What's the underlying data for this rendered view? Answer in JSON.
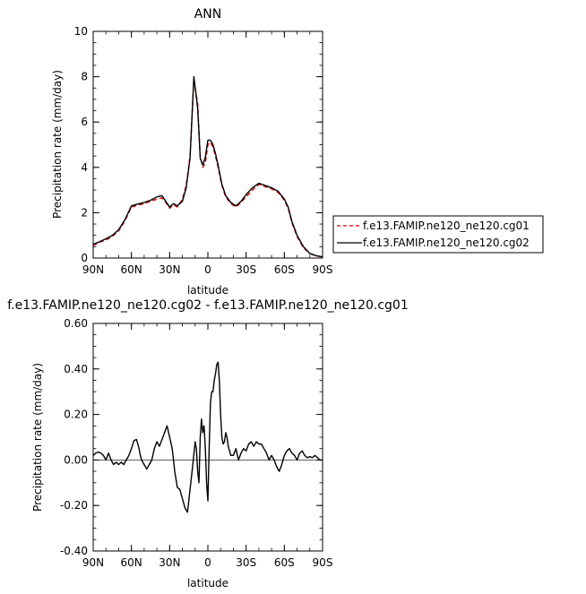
{
  "chart_data": [
    {
      "type": "line",
      "title": "ANN",
      "xlabel": "latitude",
      "ylabel": "Precipitation rate  (mm/day)",
      "xlim": [
        90,
        -90
      ],
      "ylim": [
        0,
        10
      ],
      "x_ticks": [
        90,
        60,
        30,
        0,
        -30,
        -60,
        -90
      ],
      "x_tick_labels": [
        "90N",
        "60N",
        "30N",
        "0",
        "30S",
        "60S",
        "90S"
      ],
      "y_ticks": [
        0,
        2,
        4,
        6,
        8,
        10
      ],
      "y_tick_labels": [
        "0",
        "2",
        "4",
        "6",
        "8",
        "10"
      ],
      "grid": false,
      "legend": "right",
      "series": [
        {
          "name": "f.e13.FAMIP.ne120_ne120.cg01",
          "color": "#cc0000",
          "style": "dashed",
          "x": [
            90,
            85,
            80,
            75,
            70,
            65,
            60,
            57,
            54,
            50,
            45,
            40,
            36,
            33,
            30,
            27,
            24,
            20,
            17,
            14,
            11,
            8,
            6,
            4,
            2,
            0,
            -2,
            -4,
            -6,
            -8,
            -11,
            -14,
            -18,
            -22,
            -26,
            -30,
            -35,
            -40,
            -45,
            -50,
            -55,
            -60,
            -63,
            -66,
            -70,
            -75,
            -80,
            -85,
            -90
          ],
          "y": [
            0.55,
            0.7,
            0.8,
            0.95,
            1.2,
            1.65,
            2.25,
            2.3,
            2.35,
            2.4,
            2.5,
            2.6,
            2.65,
            2.45,
            2.2,
            2.35,
            2.25,
            2.6,
            3.2,
            4.5,
            7.9,
            6.8,
            4.5,
            4.0,
            4.2,
            5.0,
            5.1,
            4.9,
            4.5,
            4.0,
            3.2,
            2.7,
            2.4,
            2.25,
            2.45,
            2.7,
            3.0,
            3.25,
            3.15,
            3.05,
            2.9,
            2.55,
            2.2,
            1.55,
            0.95,
            0.45,
            0.2,
            0.1,
            0.05
          ]
        },
        {
          "name": "f.e13.FAMIP.ne120_ne120.cg02",
          "color": "#000000",
          "style": "solid",
          "x": [
            90,
            85,
            80,
            75,
            70,
            65,
            60,
            57,
            54,
            50,
            45,
            40,
            36,
            33,
            30,
            27,
            24,
            20,
            17,
            14,
            11,
            8,
            6,
            4,
            2,
            0,
            -2,
            -4,
            -6,
            -8,
            -11,
            -14,
            -18,
            -22,
            -26,
            -30,
            -35,
            -40,
            -45,
            -50,
            -55,
            -60,
            -63,
            -66,
            -70,
            -75,
            -80,
            -85,
            -90
          ],
          "y": [
            0.6,
            0.72,
            0.85,
            1.0,
            1.25,
            1.7,
            2.3,
            2.35,
            2.4,
            2.45,
            2.55,
            2.7,
            2.75,
            2.5,
            2.25,
            2.4,
            2.3,
            2.5,
            3.1,
            4.4,
            8.0,
            6.6,
            4.4,
            4.1,
            4.45,
            5.2,
            5.2,
            5.0,
            4.6,
            4.1,
            3.25,
            2.75,
            2.45,
            2.3,
            2.5,
            2.8,
            3.1,
            3.3,
            3.2,
            3.1,
            2.95,
            2.6,
            2.25,
            1.6,
            1.0,
            0.5,
            0.2,
            0.1,
            0.05
          ]
        }
      ]
    },
    {
      "type": "line",
      "title": "f.e13.FAMIP.ne120_ne120.cg02 - f.e13.FAMIP.ne120_ne120.cg01",
      "xlabel": "latitude",
      "ylabel": "Precipitation rate  (mm/day)",
      "xlim": [
        90,
        -90
      ],
      "ylim": [
        -0.4,
        0.6
      ],
      "x_ticks": [
        90,
        60,
        30,
        0,
        -30,
        -60,
        -90
      ],
      "x_tick_labels": [
        "90N",
        "60N",
        "30N",
        "0",
        "30S",
        "60S",
        "90S"
      ],
      "y_ticks": [
        -0.4,
        -0.2,
        0,
        0.2,
        0.4,
        0.6
      ],
      "y_tick_labels": [
        "-0.40",
        "-0.20",
        "0.00",
        "0.20",
        "0.40",
        "0.60"
      ],
      "grid": false,
      "series": [
        {
          "color": "#000000",
          "style": "solid",
          "x": [
            90,
            88,
            86,
            84,
            82,
            80,
            78,
            76,
            74,
            72,
            70,
            68,
            66,
            64,
            62,
            60,
            58,
            56,
            55,
            54,
            53,
            52,
            50,
            48,
            46,
            44,
            42,
            40,
            38,
            36,
            34,
            32,
            30,
            28,
            26,
            24,
            22,
            20,
            18,
            16,
            14,
            12,
            10,
            9,
            8,
            7,
            6,
            5,
            4,
            3,
            2,
            1,
            0,
            -1,
            -2,
            -3,
            -4,
            -5,
            -6,
            -7,
            -8,
            -9,
            -10,
            -11,
            -12,
            -13,
            -14,
            -15,
            -16,
            -18,
            -20,
            -22,
            -24,
            -26,
            -28,
            -30,
            -32,
            -34,
            -36,
            -38,
            -40,
            -42,
            -44,
            -46,
            -48,
            -50,
            -52,
            -54,
            -56,
            -58,
            -60,
            -62,
            -64,
            -66,
            -68,
            -70,
            -72,
            -74,
            -76,
            -78,
            -80,
            -82,
            -84,
            -86,
            -88,
            -90
          ],
          "y": [
            0.02,
            0.03,
            0.035,
            0.03,
            0.02,
            0.0,
            0.03,
            0.0,
            -0.02,
            -0.01,
            -0.02,
            -0.01,
            -0.02,
            0.0,
            0.02,
            0.05,
            0.085,
            0.09,
            0.07,
            0.05,
            0.02,
            0.0,
            -0.02,
            -0.04,
            -0.02,
            0.0,
            0.05,
            0.08,
            0.06,
            0.09,
            0.12,
            0.15,
            0.1,
            0.05,
            -0.05,
            -0.12,
            -0.13,
            -0.17,
            -0.21,
            -0.23,
            -0.13,
            -0.03,
            0.08,
            0.05,
            -0.05,
            -0.1,
            0.1,
            0.18,
            0.12,
            0.15,
            0.05,
            -0.1,
            -0.18,
            0.05,
            0.25,
            0.3,
            0.3,
            0.35,
            0.38,
            0.42,
            0.43,
            0.35,
            0.2,
            0.1,
            0.07,
            0.08,
            0.12,
            0.1,
            0.06,
            0.02,
            0.02,
            0.05,
            0.0,
            0.03,
            0.05,
            0.04,
            0.07,
            0.08,
            0.06,
            0.08,
            0.07,
            0.07,
            0.05,
            0.03,
            0.0,
            0.02,
            0.0,
            -0.03,
            -0.05,
            -0.02,
            0.02,
            0.04,
            0.05,
            0.03,
            0.02,
            0.0,
            0.03,
            0.04,
            0.02,
            0.01,
            0.015,
            0.01,
            0.02,
            0.01,
            0.0,
            0.0
          ]
        }
      ]
    }
  ]
}
